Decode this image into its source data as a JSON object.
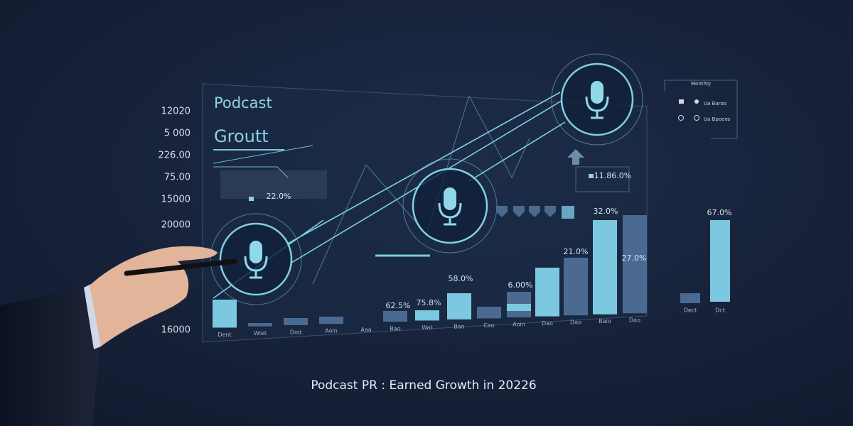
{
  "panel": {
    "title": "Podcast",
    "subtitle": "Groutt",
    "axis_labels": [
      "12020",
      "5 000",
      "226.00",
      "75.00",
      "15000",
      "20000",
      "16000"
    ],
    "value_labels": [
      "22.0%",
      "11.86.0%",
      "32.0%",
      "67.0%",
      "21.0%",
      "27.0%",
      "58.0%",
      "6.00%",
      "62.5%",
      "75.8%"
    ],
    "categories": [
      "Dent",
      "Wiet",
      "Dod",
      "Aoin",
      "Aaa",
      "Bao",
      "Wat",
      "Bao",
      "Cao",
      "Aoin",
      "Dao",
      "Dao",
      "Baio",
      "Dao"
    ],
    "side_categories": [
      "Dect",
      "Dct"
    ]
  },
  "legend": {
    "title": "Monthly",
    "items": [
      "Ua Baroo",
      "Ua Bpoeos"
    ]
  },
  "caption": "Podcast PR : Earned Growth in 20226"
}
